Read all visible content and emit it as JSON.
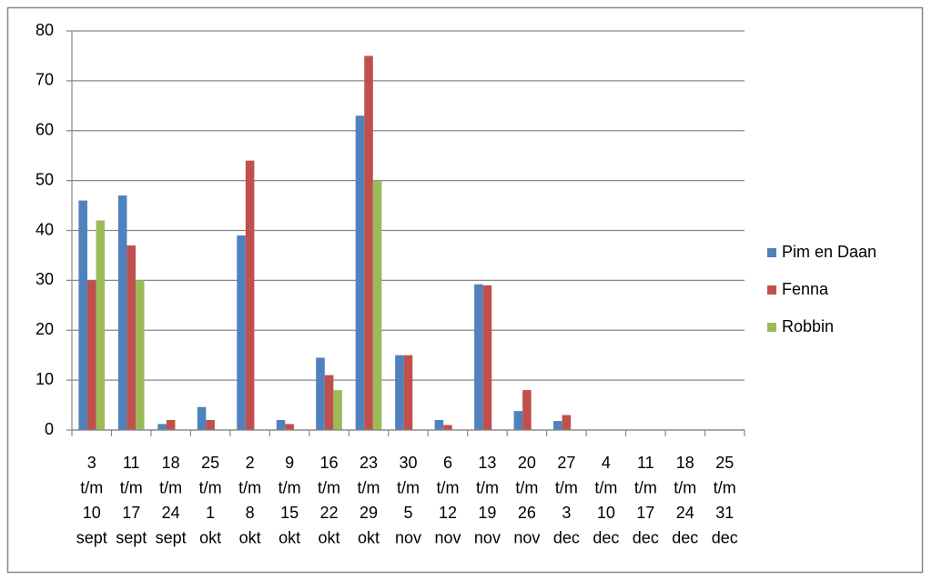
{
  "chart_data": {
    "type": "bar",
    "categories": [
      [
        "3",
        "t/m",
        "10",
        "sept"
      ],
      [
        "11",
        "t/m",
        "17",
        "sept"
      ],
      [
        "18",
        "t/m",
        "24",
        "sept"
      ],
      [
        "25",
        "t/m",
        "1",
        "okt"
      ],
      [
        "2",
        "t/m",
        "8",
        "okt"
      ],
      [
        "9",
        "t/m",
        "15",
        "okt"
      ],
      [
        "16",
        "t/m",
        "22",
        "okt"
      ],
      [
        "23",
        "t/m",
        "29",
        "okt"
      ],
      [
        "30",
        "t/m",
        "5",
        "nov"
      ],
      [
        "6",
        "t/m",
        "12",
        "nov"
      ],
      [
        "13",
        "t/m",
        "19",
        "nov"
      ],
      [
        "20",
        "t/m",
        "26",
        "nov"
      ],
      [
        "27",
        "t/m",
        "3",
        "dec"
      ],
      [
        "4",
        "t/m",
        "10",
        "dec"
      ],
      [
        "11",
        "t/m",
        "17",
        "dec"
      ],
      [
        "18",
        "t/m",
        "24",
        "dec"
      ],
      [
        "25",
        "t/m",
        "31",
        "dec"
      ]
    ],
    "series": [
      {
        "name": "Pim en Daan",
        "color": "#4f81bd",
        "values": [
          46,
          47,
          1.2,
          4.6,
          39,
          2,
          14.5,
          63,
          15,
          2,
          29.2,
          3.8,
          1.8,
          0,
          0,
          0,
          0
        ]
      },
      {
        "name": "Fenna",
        "color": "#c0504d",
        "values": [
          30,
          37,
          2,
          2,
          54,
          1.2,
          11,
          75,
          15,
          1,
          29,
          8,
          3,
          0,
          0,
          0,
          0
        ]
      },
      {
        "name": "Robbin",
        "color": "#9bbb59",
        "values": [
          42,
          30,
          0,
          0,
          0,
          0,
          8,
          50,
          0,
          0,
          0,
          0,
          0,
          0,
          0,
          0,
          0
        ]
      }
    ],
    "ylim": [
      0,
      80
    ],
    "yticks": [
      0,
      10,
      20,
      30,
      40,
      50,
      60,
      70,
      80
    ],
    "grid": true,
    "legend": "right"
  }
}
